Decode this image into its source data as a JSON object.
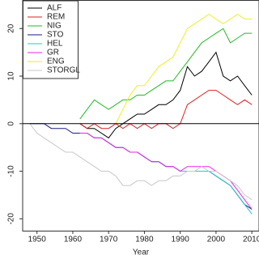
{
  "chart_data": {
    "type": "line",
    "x_label": "Year",
    "x": [
      1948,
      1950,
      1952,
      1954,
      1956,
      1958,
      1960,
      1962,
      1964,
      1966,
      1968,
      1970,
      1972,
      1974,
      1976,
      1978,
      1980,
      1982,
      1984,
      1986,
      1988,
      1990,
      1992,
      1994,
      1996,
      1998,
      2000,
      2002,
      2004,
      2006,
      2008,
      2010
    ],
    "xlim": [
      1946,
      2012
    ],
    "xticks": [
      1950,
      1960,
      1970,
      1980,
      1990,
      2000,
      2010
    ],
    "ylim": [
      -22.5,
      26
    ],
    "yticks": [
      -20,
      -10,
      0,
      10,
      20
    ],
    "hline": 0,
    "legend": "top-left",
    "series": [
      {
        "name": "ALF",
        "color": "#000000",
        "values": [
          null,
          null,
          null,
          null,
          null,
          null,
          null,
          0,
          -1,
          -1,
          -2,
          -3,
          -1,
          0,
          1,
          2,
          2,
          3,
          4,
          4,
          5,
          7,
          12,
          10,
          11,
          13,
          15,
          10,
          9,
          10,
          8,
          6
        ]
      },
      {
        "name": "REM",
        "color": "#df2020",
        "values": [
          null,
          null,
          null,
          null,
          null,
          null,
          null,
          0,
          -1,
          0,
          -1,
          -1,
          0,
          -1,
          0,
          -1,
          0,
          -1,
          0,
          0,
          -1,
          0,
          4,
          5,
          6,
          7,
          7,
          6,
          5,
          4,
          5,
          4
        ]
      },
      {
        "name": "NIG",
        "color": "#22bb22",
        "values": [
          null,
          null,
          null,
          null,
          null,
          null,
          null,
          1,
          3,
          5,
          4,
          3,
          4,
          5,
          5,
          6,
          6,
          7,
          8,
          9,
          9,
          11,
          13,
          15,
          17,
          18,
          19,
          20,
          17,
          18,
          19,
          19
        ]
      },
      {
        "name": "STO",
        "color": "#1a1a8c",
        "values": [
          0,
          0,
          0,
          -1,
          -1,
          -1,
          -2,
          -2,
          -2,
          -3,
          -3,
          -4,
          -5,
          -5,
          -6,
          -6,
          -7,
          -8,
          -8,
          -9,
          -9,
          -10,
          -10,
          -10,
          -10,
          -10,
          -11,
          -12,
          -13,
          -15,
          -17,
          -18
        ]
      },
      {
        "name": "HEL",
        "color": "#22cccc",
        "values": [
          null,
          null,
          null,
          null,
          null,
          null,
          null,
          -2,
          -2,
          -3,
          -3,
          -4,
          -5,
          -5,
          -6,
          -6,
          -7,
          -8,
          -8,
          -9,
          -9,
          -10,
          -10,
          -10,
          -10,
          -10,
          -11,
          -12,
          -13,
          -15,
          -17,
          -19
        ]
      },
      {
        "name": "GR",
        "color": "#ee22ee",
        "values": [
          null,
          null,
          null,
          null,
          null,
          null,
          null,
          -2,
          -2,
          -3,
          -3,
          -4,
          -5,
          -5,
          -6,
          -6,
          -7,
          -8,
          -8,
          -9,
          -9,
          -10,
          -9,
          -9,
          -9,
          -9,
          -10,
          -11,
          -12,
          -14,
          -16,
          -18
        ]
      },
      {
        "name": "ENG",
        "color": "#eeee22",
        "values": [
          null,
          null,
          null,
          null,
          null,
          null,
          null,
          null,
          null,
          null,
          null,
          null,
          0,
          3,
          6,
          8,
          8,
          10,
          12,
          13,
          14,
          17,
          20,
          21,
          22,
          23,
          22,
          21,
          22,
          23,
          22,
          22
        ]
      },
      {
        "name": "STORGL",
        "color": "#c8c8c8",
        "values": [
          0,
          -2,
          -3,
          -4,
          -5,
          -6,
          -6,
          -7,
          -8,
          -9,
          -10,
          -10,
          -11,
          -13,
          -13,
          -12,
          -12,
          -13,
          -12,
          -12,
          -11,
          -11,
          -10,
          -10,
          -9,
          -10,
          -10,
          -11,
          -12,
          -13,
          -15,
          -16
        ]
      }
    ]
  }
}
